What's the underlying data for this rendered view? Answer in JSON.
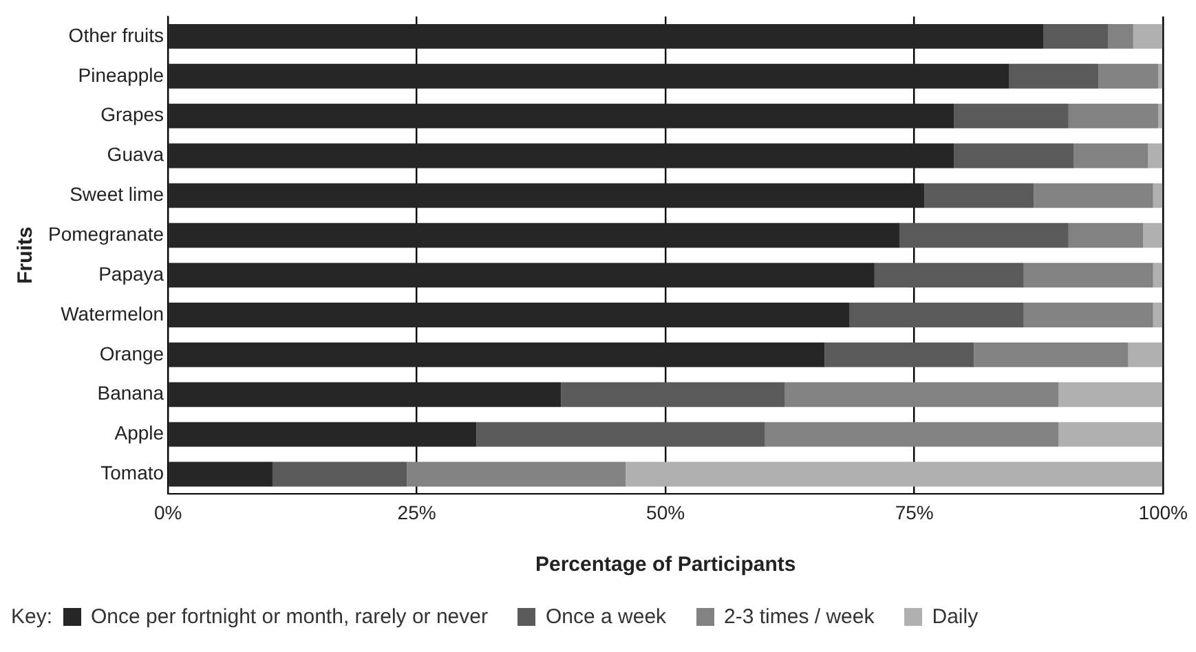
{
  "chart_data": {
    "type": "bar",
    "orientation": "horizontal",
    "stacked": true,
    "xlabel": "Percentage of Participants",
    "ylabel": "Fruits",
    "legend_title": "Key:",
    "legend": "bottom",
    "grid": "x",
    "categories": [
      "Other fruits",
      "Pineapple",
      "Grapes",
      "Guava",
      "Sweet lime",
      "Pomegranate",
      "Papaya",
      "Watermelon",
      "Orange",
      "Banana",
      "Apple",
      "Tomato"
    ],
    "xlim": [
      0,
      100
    ],
    "xticks": [
      {
        "value": 0,
        "label": "0%"
      },
      {
        "value": 25,
        "label": "25%"
      },
      {
        "value": 50,
        "label": "50%"
      },
      {
        "value": 75,
        "label": "75%"
      },
      {
        "value": 100,
        "label": "100%"
      }
    ],
    "series": [
      {
        "name": "Once per fortnight or month, rarely or never",
        "color": "#262626",
        "values": [
          88,
          84.5,
          79,
          79,
          76,
          73.5,
          71,
          68.5,
          66,
          39.5,
          31,
          10.5
        ]
      },
      {
        "name": "Once a week",
        "color": "#5a5a5a",
        "values": [
          6.5,
          9,
          11.5,
          12,
          11,
          17,
          15,
          17.5,
          15,
          22.5,
          29,
          13.5
        ]
      },
      {
        "name": "2-3 times / week",
        "color": "#828282",
        "values": [
          2.5,
          6,
          9,
          7.5,
          12,
          7.5,
          13,
          13,
          15.5,
          27.5,
          29.5,
          22
        ]
      },
      {
        "name": "Daily",
        "color": "#b0b0b0",
        "values": [
          3,
          0.5,
          0.5,
          1.5,
          1,
          2,
          1,
          1,
          3.5,
          10.5,
          10.5,
          54
        ]
      }
    ]
  }
}
